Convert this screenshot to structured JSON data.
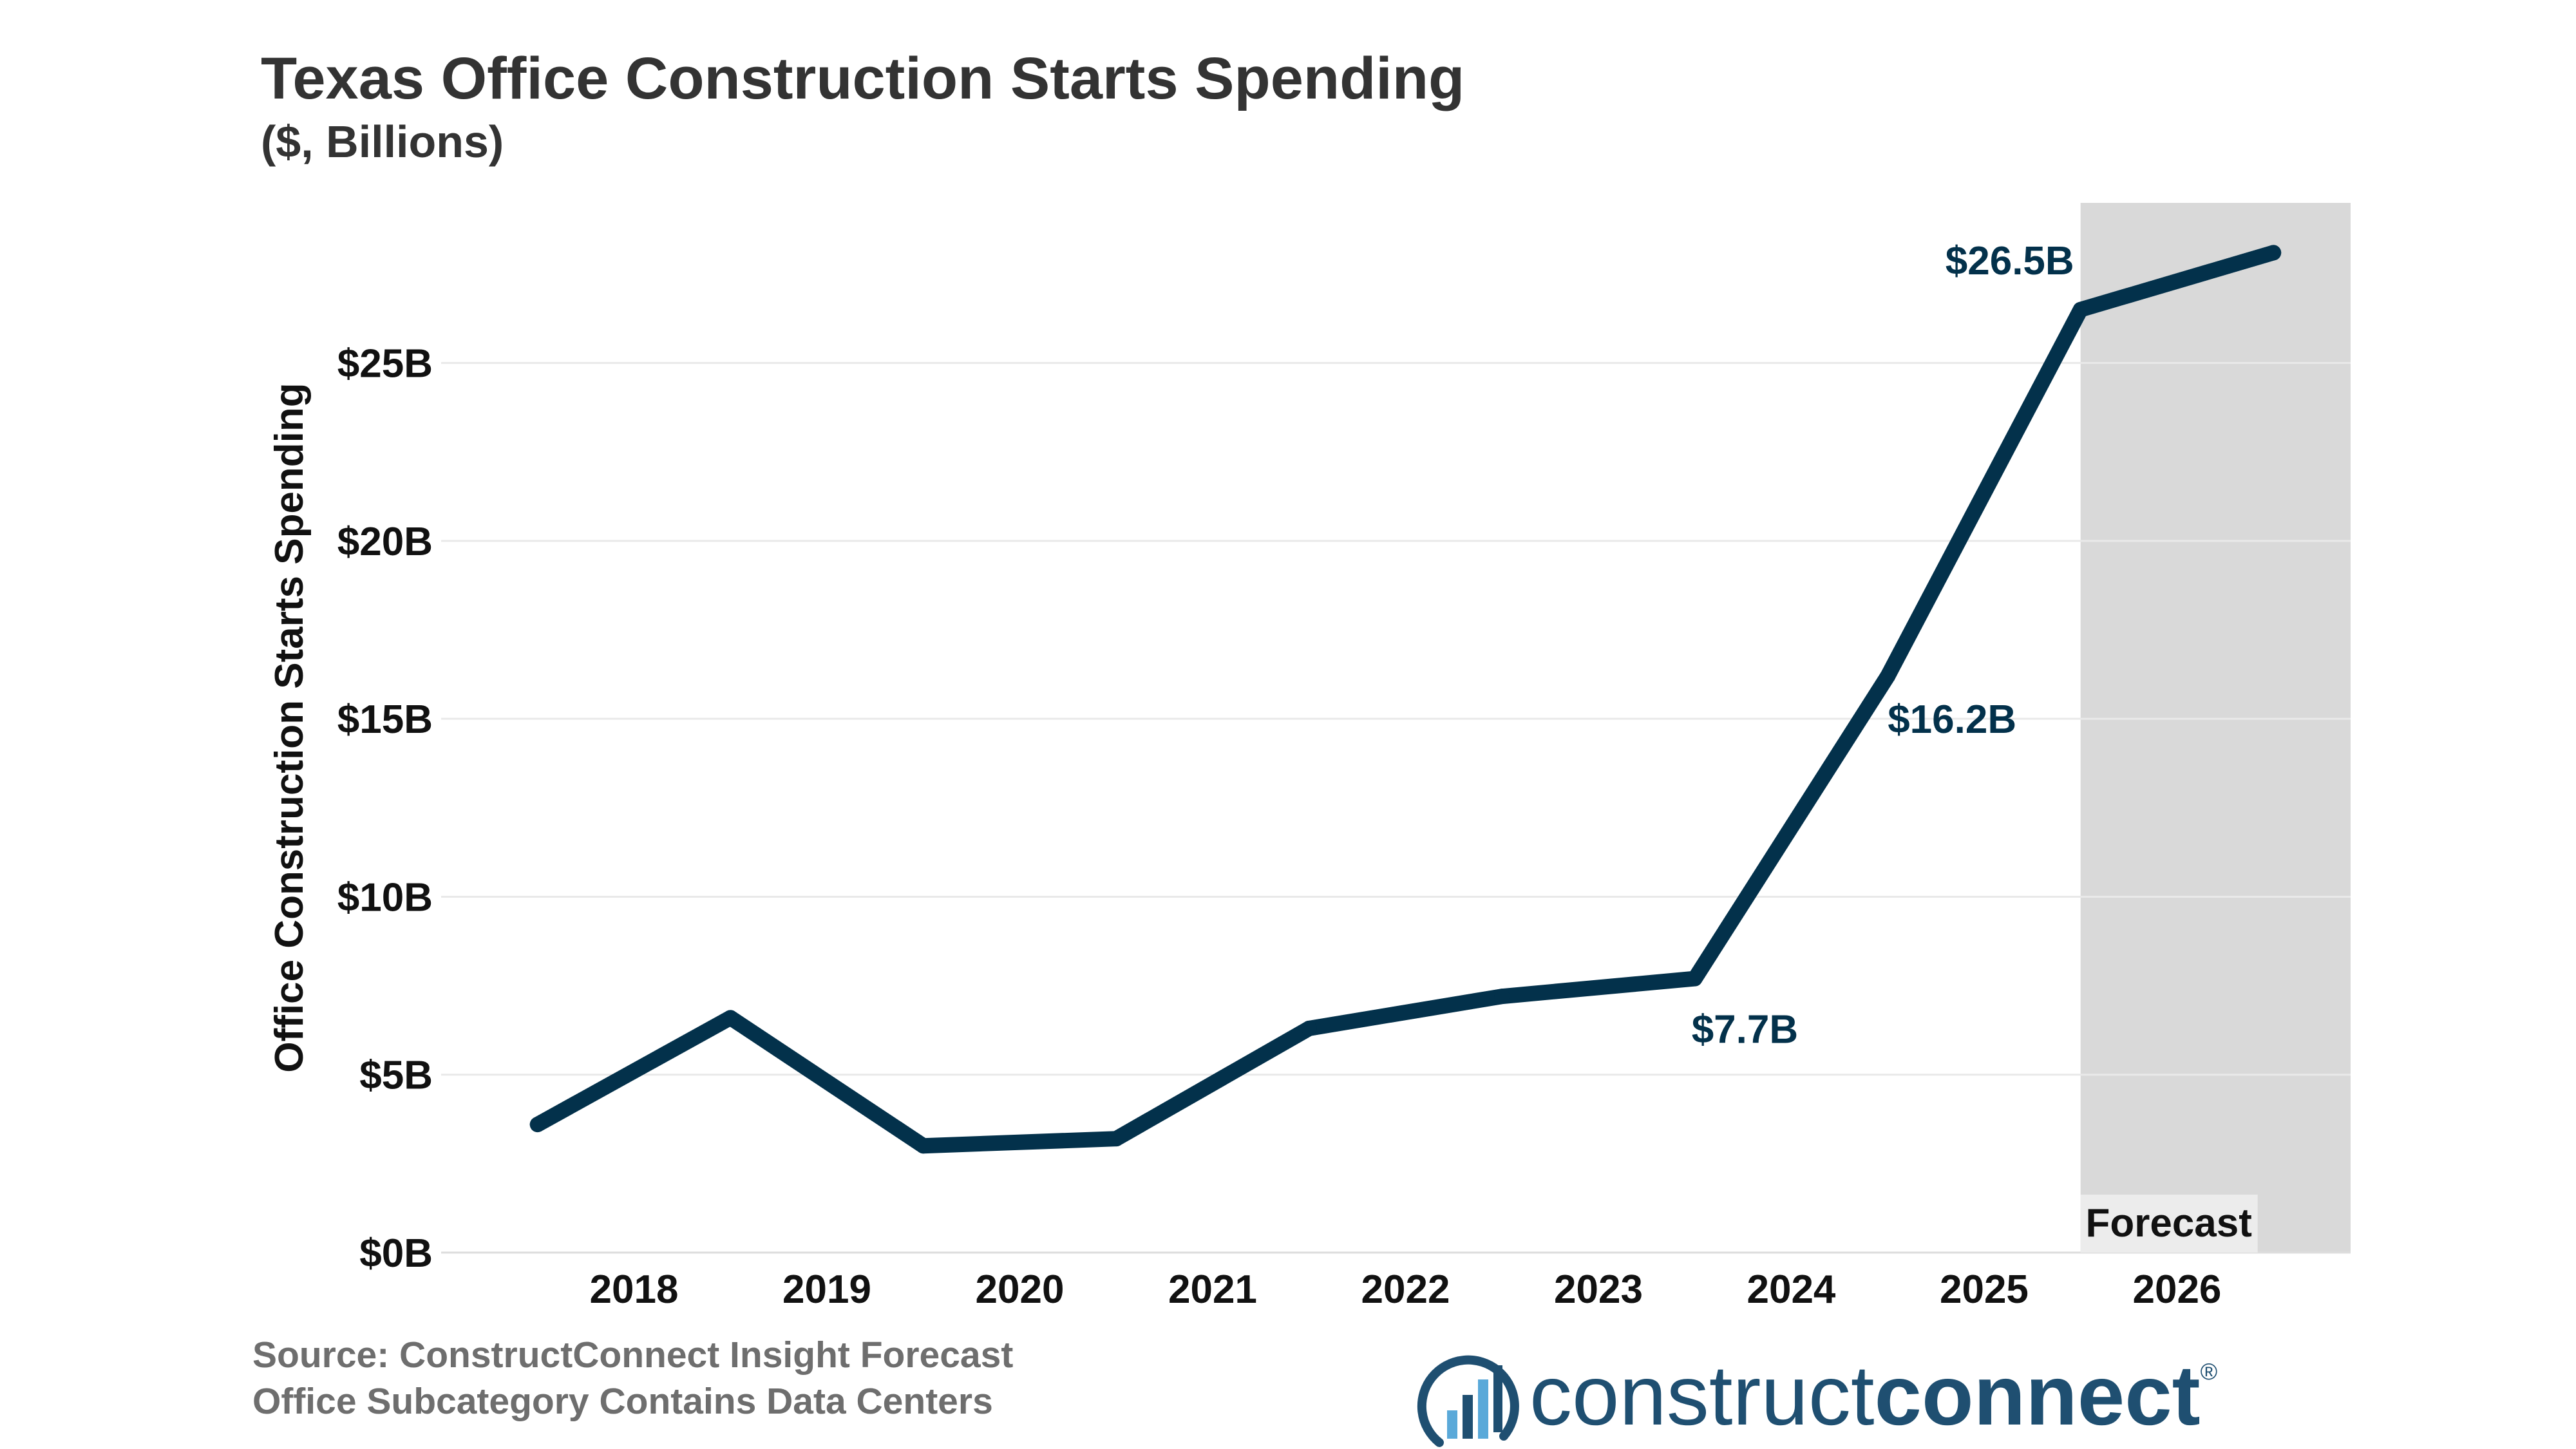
{
  "chart_data": {
    "type": "line",
    "title": "Texas Office Construction Starts Spending",
    "subtitle": "($, Billions)",
    "ylabel": "Office Construction Starts Spending",
    "xlabel": "",
    "categories": [
      "2018",
      "2019",
      "2020",
      "2021",
      "2022",
      "2023",
      "2024",
      "2025",
      "2026"
    ],
    "x": [
      2017.5,
      2018.5,
      2019.5,
      2020.5,
      2021.5,
      2022.5,
      2023.5,
      2024.5,
      2025.5,
      2026.5
    ],
    "values": [
      3.6,
      6.6,
      3.0,
      3.2,
      6.3,
      7.2,
      7.7,
      16.2,
      26.5,
      28.1
    ],
    "ylim": [
      0,
      29.5
    ],
    "xlim": [
      2017.0,
      2026.9
    ],
    "yticks": [
      0,
      5,
      10,
      15,
      20,
      25
    ],
    "ytick_labels": [
      "$0B",
      "$5B",
      "$10B",
      "$15B",
      "$20B",
      "$25B"
    ],
    "grid": true,
    "data_labels": [
      {
        "x": 2023.5,
        "y": 7.7,
        "text": "$7.7B",
        "position": "below"
      },
      {
        "x": 2024.5,
        "y": 16.2,
        "text": "$16.2B",
        "position": "below-right"
      },
      {
        "x": 2025.5,
        "y": 26.5,
        "text": "$26.5B",
        "position": "above-left"
      }
    ],
    "forecast_region": {
      "start": 2025.5,
      "end": 2026.9,
      "label": "Forecast"
    },
    "colors": {
      "line": "#03314b",
      "label": "#03314b",
      "forecast_fill": "#d9d9d9",
      "grid": "#e9e9e9"
    }
  },
  "footer": {
    "source": "Source: ConstructConnect Insight Forecast",
    "note": "Office Subcategory Contains Data Centers"
  },
  "logo": {
    "text_light": "construct",
    "text_bold": "connect",
    "mark": "®",
    "colors": {
      "primary": "#1f4f71",
      "accent": "#5aa9d9"
    }
  }
}
